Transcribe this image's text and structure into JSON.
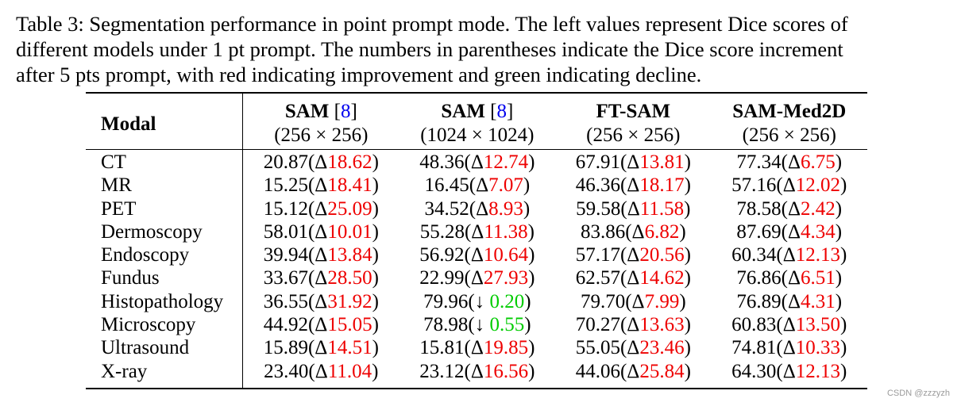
{
  "caption": {
    "line1": "Table 3: Segmentation performance in point prompt mode. The left values represent Dice scores of",
    "line2": "different models under 1 pt prompt. The numbers in parentheses indicate the Dice score increment",
    "line3": "after 5 pts prompt, with red indicating improvement and green indicating decline."
  },
  "table": {
    "modal_header": "Modal",
    "columns": [
      {
        "name": "SAM",
        "ref": "8",
        "res": "(256 × 256)"
      },
      {
        "name": "SAM",
        "ref": "8",
        "res": "(1024 × 1024)"
      },
      {
        "name": "FT-SAM",
        "ref": "",
        "res": "(256 × 256)"
      },
      {
        "name": "SAM-Med2D",
        "ref": "",
        "res": "(256 × 256)"
      }
    ],
    "rows": [
      {
        "modal": "CT",
        "cells": [
          {
            "base": "20.87",
            "delta": "18.62",
            "dir": "up"
          },
          {
            "base": "48.36",
            "delta": "12.74",
            "dir": "up"
          },
          {
            "base": "67.91",
            "delta": "13.81",
            "dir": "up"
          },
          {
            "base": "77.34",
            "delta": "6.75",
            "dir": "up"
          }
        ]
      },
      {
        "modal": "MR",
        "cells": [
          {
            "base": "15.25",
            "delta": "18.41",
            "dir": "up"
          },
          {
            "base": "16.45",
            "delta": "7.07",
            "dir": "up"
          },
          {
            "base": "46.36",
            "delta": "18.17",
            "dir": "up"
          },
          {
            "base": "57.16",
            "delta": "12.02",
            "dir": "up"
          }
        ]
      },
      {
        "modal": "PET",
        "cells": [
          {
            "base": "15.12",
            "delta": "25.09",
            "dir": "up"
          },
          {
            "base": "34.52",
            "delta": "8.93",
            "dir": "up"
          },
          {
            "base": "59.58",
            "delta": "11.58",
            "dir": "up"
          },
          {
            "base": "78.58",
            "delta": "2.42",
            "dir": "up"
          }
        ]
      },
      {
        "modal": "Dermoscopy",
        "cells": [
          {
            "base": "58.01",
            "delta": "10.01",
            "dir": "up"
          },
          {
            "base": "55.28",
            "delta": "11.38",
            "dir": "up"
          },
          {
            "base": "83.86",
            "delta": "6.82",
            "dir": "up"
          },
          {
            "base": "87.69",
            "delta": "4.34",
            "dir": "up"
          }
        ]
      },
      {
        "modal": "Endoscopy",
        "cells": [
          {
            "base": "39.94",
            "delta": "13.84",
            "dir": "up"
          },
          {
            "base": "56.92",
            "delta": "10.64",
            "dir": "up"
          },
          {
            "base": "57.17",
            "delta": "20.56",
            "dir": "up"
          },
          {
            "base": "60.34",
            "delta": "12.13",
            "dir": "up"
          }
        ]
      },
      {
        "modal": "Fundus",
        "cells": [
          {
            "base": "33.67",
            "delta": "28.50",
            "dir": "up"
          },
          {
            "base": "22.99",
            "delta": "27.93",
            "dir": "up"
          },
          {
            "base": "62.57",
            "delta": "14.62",
            "dir": "up"
          },
          {
            "base": "76.86",
            "delta": "6.51",
            "dir": "up"
          }
        ]
      },
      {
        "modal": "Histopathology",
        "cells": [
          {
            "base": "36.55",
            "delta": "31.92",
            "dir": "up"
          },
          {
            "base": "79.96",
            "delta": "0.20",
            "dir": "down"
          },
          {
            "base": "79.70",
            "delta": "7.99",
            "dir": "up"
          },
          {
            "base": "76.89",
            "delta": "4.31",
            "dir": "up"
          }
        ]
      },
      {
        "modal": "Microscopy",
        "cells": [
          {
            "base": "44.92",
            "delta": "15.05",
            "dir": "up"
          },
          {
            "base": "78.98",
            "delta": "0.55",
            "dir": "down"
          },
          {
            "base": "70.27",
            "delta": "13.63",
            "dir": "up"
          },
          {
            "base": "60.83",
            "delta": "13.50",
            "dir": "up"
          }
        ]
      },
      {
        "modal": "Ultrasound",
        "cells": [
          {
            "base": "15.89",
            "delta": "14.51",
            "dir": "up"
          },
          {
            "base": "15.81",
            "delta": "19.85",
            "dir": "up"
          },
          {
            "base": "55.05",
            "delta": "23.46",
            "dir": "up"
          },
          {
            "base": "74.81",
            "delta": "10.33",
            "dir": "up"
          }
        ]
      },
      {
        "modal": "X-ray",
        "cells": [
          {
            "base": "23.40",
            "delta": "11.04",
            "dir": "up"
          },
          {
            "base": "23.12",
            "delta": "16.56",
            "dir": "up"
          },
          {
            "base": "44.06",
            "delta": "25.84",
            "dir": "up"
          },
          {
            "base": "64.30",
            "delta": "12.13",
            "dir": "up"
          }
        ]
      }
    ]
  },
  "colors": {
    "improvement": "#ee0000",
    "decline": "#00cc00",
    "ref": "#0000ee"
  },
  "watermark": "CSDN @zzzyzh"
}
